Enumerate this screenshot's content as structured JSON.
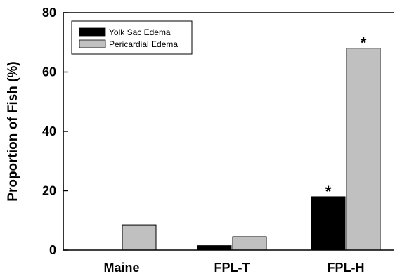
{
  "chart_data": {
    "type": "bar",
    "title": "",
    "xlabel": "",
    "ylabel": "Proportion of Fish (%)",
    "ylim": [
      0,
      80
    ],
    "yticks": [
      0,
      20,
      40,
      60,
      80
    ],
    "categories": [
      "Maine",
      "FPL-T",
      "FPL-H"
    ],
    "series": [
      {
        "name": "Yolk Sac Edema",
        "color": "#000000",
        "values": [
          0,
          1.5,
          18
        ]
      },
      {
        "name": "Pericardial Edema",
        "color": "#c0c0c0",
        "values": [
          8.5,
          4.5,
          68
        ]
      }
    ],
    "annotations": [
      {
        "text": "*",
        "category": "FPL-H",
        "series": "Yolk Sac Edema"
      },
      {
        "text": "*",
        "category": "FPL-H",
        "series": "Pericardial Edema"
      }
    ],
    "legend_position": "top-left",
    "grid": false
  }
}
